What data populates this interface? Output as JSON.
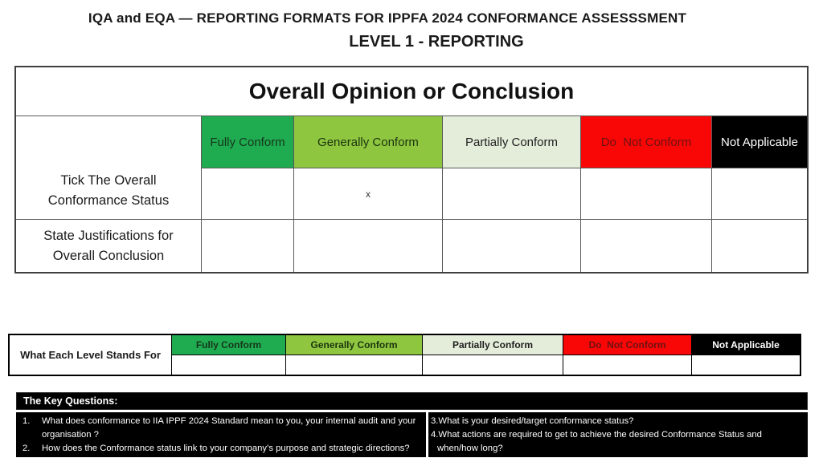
{
  "header": {
    "title": "IQA and EQA — REPORTING FORMATS FOR IPPFA 2024 CONFORMANCE ASSESSSMENT",
    "subtitle": "LEVEL 1 - REPORTING"
  },
  "conformance_levels": [
    {
      "label": "Fully Conform",
      "bg": "#1FAC50",
      "fg": "#16351C"
    },
    {
      "label": "Generally Conform",
      "bg": "#8FC640",
      "fg": "#1C350F"
    },
    {
      "label": "Partially Conform",
      "bg": "#E4ECDA",
      "fg": "#1F1F1F"
    },
    {
      "label": "Do  Not Conform",
      "bg": "#F90606",
      "fg": "#6E1212"
    },
    {
      "label": "Not Applicable",
      "bg": "#000000",
      "fg": "#FFFFFF"
    }
  ],
  "main_table": {
    "title": "Overall Opinion or Conclusion",
    "rows": [
      {
        "label": "Tick The Overall Conformance Status",
        "cells": [
          "",
          "x",
          "",
          "",
          ""
        ]
      },
      {
        "label": "State Justifications for Overall Conclusion",
        "cells": [
          "",
          "",
          "",
          "",
          ""
        ]
      }
    ]
  },
  "legend_table": {
    "label": "What Each Level Stands For",
    "cells": [
      "",
      "",
      "",
      "",
      ""
    ]
  },
  "key_questions": {
    "title": "The Key Questions:",
    "left": [
      {
        "num": "1.",
        "text": "What does conformance to IIA IPPF 2024 Standard mean to you, your internal audit and your organisation ?"
      },
      {
        "num": "2.",
        "text": "How does the Conformance status link to your company’s purpose and strategic directions?"
      }
    ],
    "right": [
      {
        "num": "3.",
        "text": "What is your desired/target conformance status?"
      },
      {
        "num": "4.",
        "text": "What actions are required to get to achieve the desired Conformance Status and when/how long?"
      }
    ]
  }
}
